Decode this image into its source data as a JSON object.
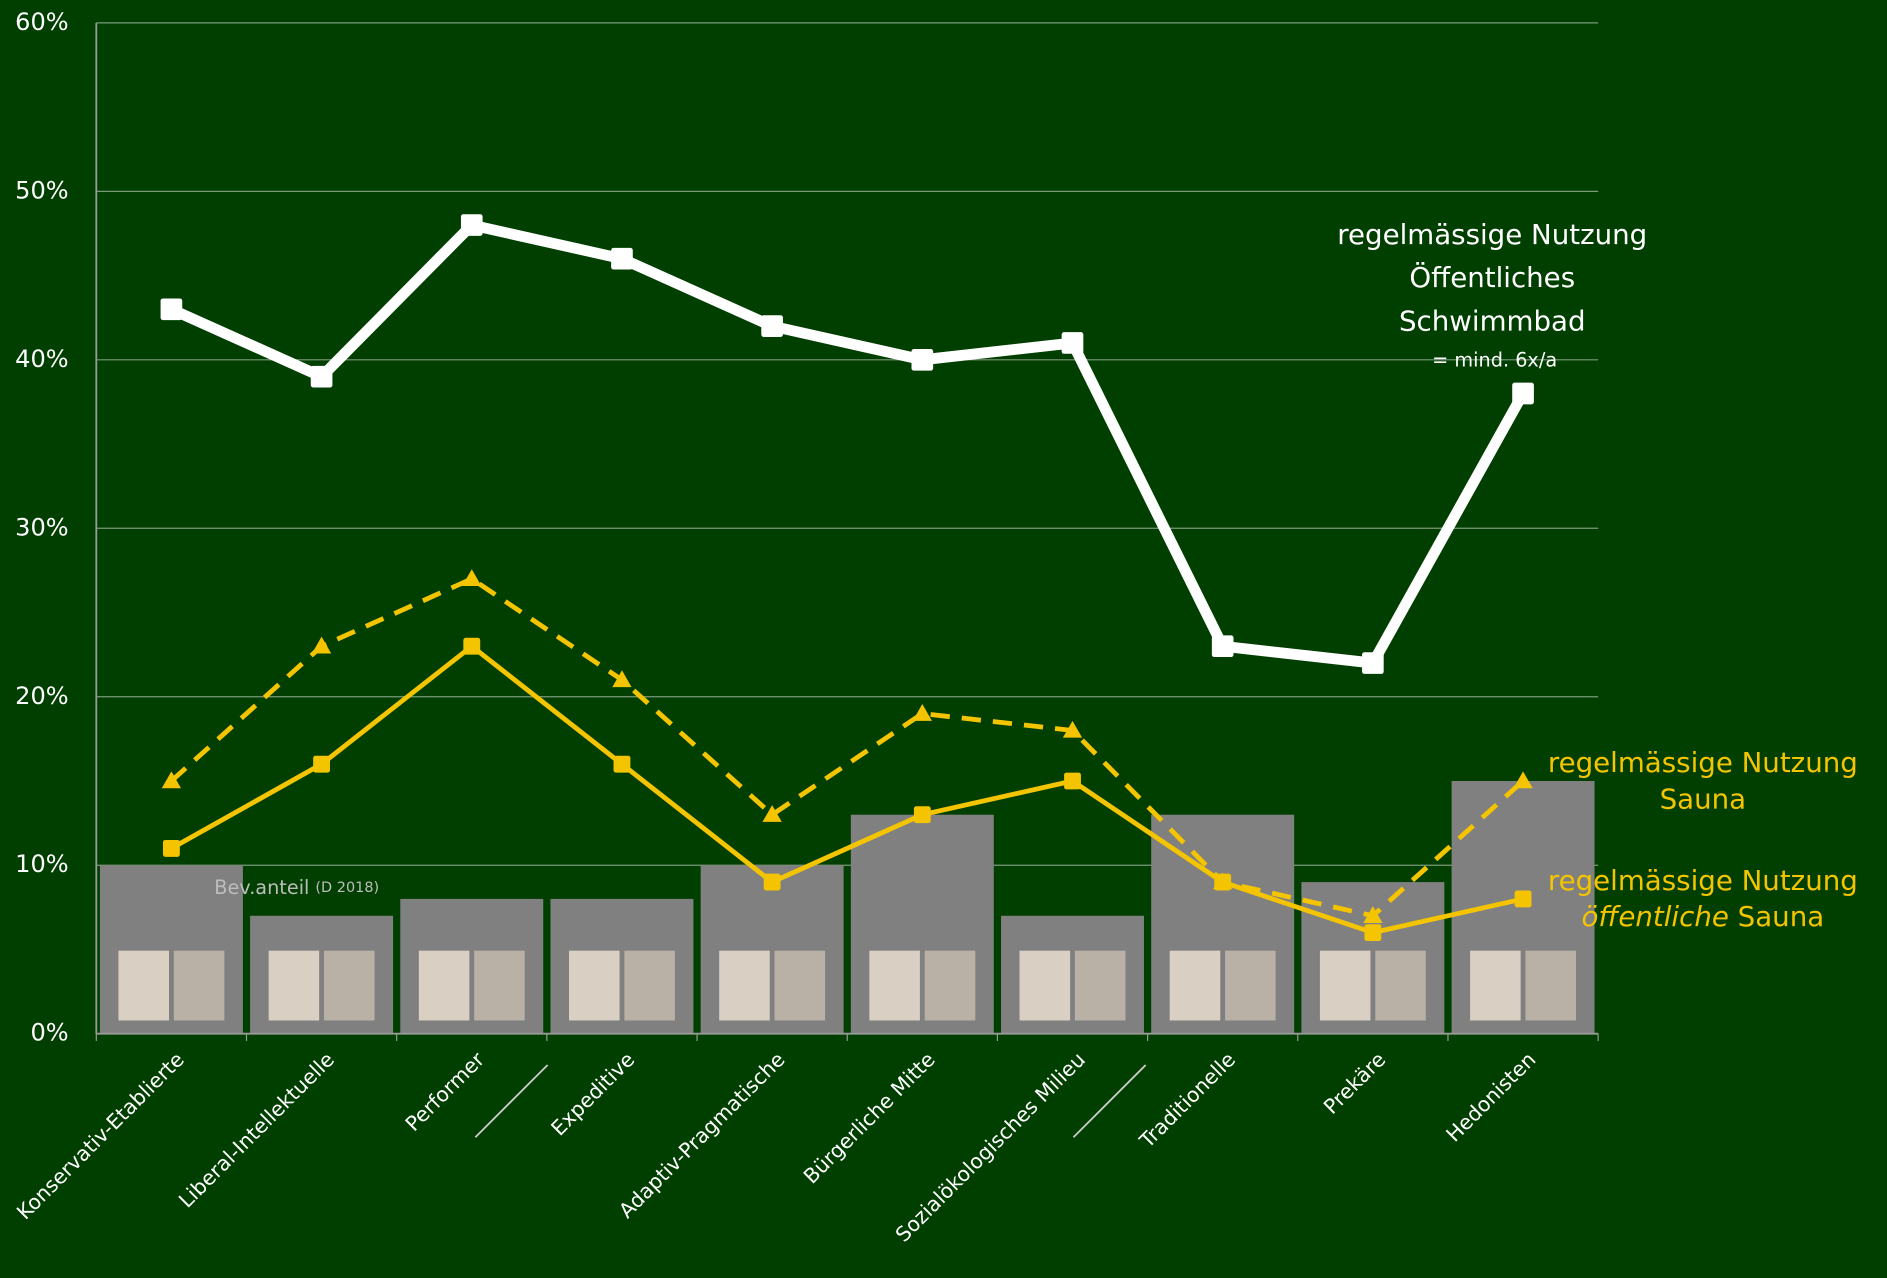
{
  "chart_data": {
    "type": "bar-line",
    "categories": [
      "Konservativ-Etablierte",
      "Liberal-Intellektuelle",
      "Performer",
      "Expeditive",
      "Adaptiv-Pragmatische",
      "Bürgerliche Mitte",
      "Sozialökologisches Milieu",
      "Traditionelle",
      "Prekäre",
      "Hedonisten"
    ],
    "ylim": [
      0,
      60
    ],
    "yticks": [
      {
        "value": 0,
        "label": "0%"
      },
      {
        "value": 10,
        "label": "10%"
      },
      {
        "value": 20,
        "label": "20%"
      },
      {
        "value": 30,
        "label": "30%"
      },
      {
        "value": 40,
        "label": "40%"
      },
      {
        "value": 50,
        "label": "50%"
      },
      {
        "value": 60,
        "label": "60%"
      }
    ],
    "grid": true,
    "bars": {
      "label": "Bev.anteil",
      "note": "(D 2018)",
      "color": "#808080",
      "values": [
        10,
        7,
        8,
        8,
        10,
        13,
        7,
        13,
        9,
        15
      ]
    },
    "series": [
      {
        "color": "#ffffff",
        "style": "solid",
        "marker": "square",
        "values": [
          43,
          39,
          48,
          46,
          42,
          40,
          41,
          23,
          22,
          38
        ]
      },
      {
        "color": "#f5c400",
        "style": "dashed",
        "marker": "triangle",
        "values": [
          15,
          23,
          27,
          21,
          13,
          19,
          18,
          9,
          7,
          15
        ]
      },
      {
        "color": "#f5c400",
        "style": "solid",
        "marker": "square",
        "values": [
          11,
          16,
          23,
          16,
          9,
          13,
          15,
          9,
          6,
          8
        ]
      }
    ],
    "annotations": [
      {
        "color": "#ffffff",
        "lines": [
          "regelmässige Nutzung",
          "Öffentliches",
          "Schwimmbad"
        ],
        "note": "= mind. 6x/a"
      },
      {
        "color": "#f5c400",
        "lines": [
          "regelmässige Nutzung",
          "Sauna"
        ]
      },
      {
        "color": "#f5c400",
        "lines": [
          "regelmässige Nutzung"
        ],
        "parts": [
          {
            "text": "öffentliche",
            "italic": true
          },
          {
            "text": " Sauna",
            "italic": false
          }
        ]
      }
    ]
  }
}
